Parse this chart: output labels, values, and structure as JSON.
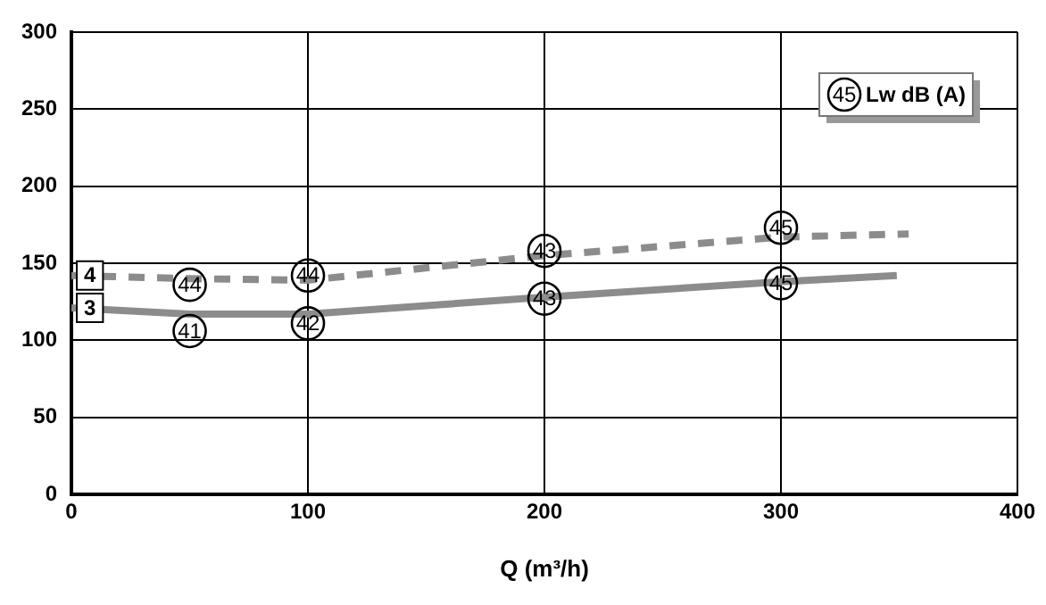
{
  "chart_data": {
    "type": "line",
    "xlabel": "Q (m³/h)",
    "xlim": [
      0,
      400
    ],
    "xticks": [
      0,
      100,
      200,
      300,
      400
    ],
    "ylim": [
      0,
      300
    ],
    "yticks": [
      0,
      50,
      100,
      150,
      200,
      250,
      300
    ],
    "grid": true,
    "legend": "left",
    "marker": "none",
    "series": [
      {
        "name": "4",
        "color": "#8c8c8c",
        "line_style": "dashed",
        "x": [
          0,
          50,
          100,
          200,
          300,
          354
        ],
        "values": [
          142,
          140,
          139,
          155,
          167,
          169
        ]
      },
      {
        "name": "3",
        "color": "#8c8c8c",
        "line_style": "solid",
        "x": [
          0,
          50,
          100,
          200,
          300,
          349
        ],
        "values": [
          121,
          117,
          117,
          128,
          138,
          142
        ]
      }
    ],
    "annotations": [
      {
        "text": "44",
        "x": 50,
        "y": 136
      },
      {
        "text": "41",
        "x": 50,
        "y": 106
      },
      {
        "text": "44",
        "x": 100,
        "y": 142
      },
      {
        "text": "42",
        "x": 100,
        "y": 111
      },
      {
        "text": "43",
        "x": 200,
        "y": 158
      },
      {
        "text": "43",
        "x": 200,
        "y": 127
      },
      {
        "text": "45",
        "x": 300,
        "y": 173
      },
      {
        "text": "45",
        "x": 300,
        "y": 137
      },
      "45 Lw dB (A)"
    ]
  }
}
